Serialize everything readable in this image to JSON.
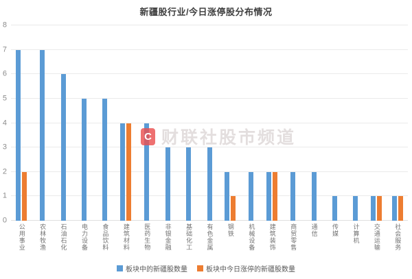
{
  "title": "新疆股行业/今日涨停股分布情况",
  "watermark": {
    "logo_text": "C",
    "text": "财联社股市频道"
  },
  "legend": [
    {
      "label": "板块中的新疆股数量",
      "color": "#5B9BD5"
    },
    {
      "label": "板块中今日涨停的新疆股数量",
      "color": "#ED7D31"
    }
  ],
  "colors": {
    "blue": "#5B9BD5",
    "orange": "#ED7D31",
    "gridline": "#eaeaea"
  },
  "chart_data": {
    "type": "bar",
    "title": "新疆股行业/今日涨停股分布情况",
    "categories": [
      "公用事业",
      "农林牧渔",
      "石油石化",
      "电力设备",
      "食品饮料",
      "建筑材料",
      "医药生物",
      "非银金融",
      "基础化工",
      "有色金属",
      "钢铁",
      "机械设备",
      "建筑装饰",
      "商贸零售",
      "通信",
      "传媒",
      "计算机",
      "交通运输",
      "社会服务"
    ],
    "series": [
      {
        "name": "板块中的新疆股数量",
        "color": "#5B9BD5",
        "values": [
          7,
          7,
          6,
          5,
          5,
          4,
          4,
          3,
          3,
          3,
          2,
          2,
          2,
          2,
          2,
          1,
          1,
          1,
          1
        ]
      },
      {
        "name": "板块中今日涨停的新疆股数量",
        "color": "#ED7D31",
        "values": [
          2,
          0,
          0,
          0,
          0,
          4,
          0,
          0,
          0,
          0,
          1,
          0,
          2,
          0,
          0,
          0,
          0,
          1,
          1
        ]
      }
    ],
    "xlabel": "",
    "ylabel": "",
    "ylim": [
      0,
      8
    ],
    "yticks": [
      0,
      1,
      2,
      3,
      4,
      5,
      6,
      7,
      8
    ],
    "grid": true,
    "legend_position": "bottom"
  }
}
